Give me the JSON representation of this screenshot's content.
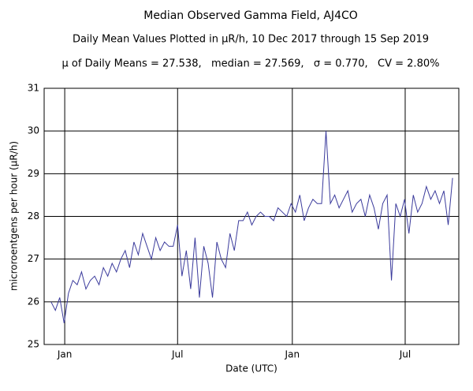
{
  "chart_data": {
    "type": "line",
    "title": "Median Observed Gamma Field, AJ4CO",
    "subtitle": "Daily Mean Values Plotted in μR/h, 10 Dec 2017 through 15 Sep 2019",
    "stats": "μ of Daily Means = 27.538,   median = 27.569,   σ = 0.770,   CV = 2.80%",
    "x_label": "Date (UTC)",
    "y_label": "microroentgens per hour (μR/h)",
    "color": "#3b3b9c",
    "grid": true,
    "xlim": [
      "2017-11-29",
      "2019-09-25"
    ],
    "xticks": [
      {
        "value": "2018-01-01",
        "label": "Jan"
      },
      {
        "value": "2018-07-01",
        "label": "Jul"
      },
      {
        "value": "2019-01-01",
        "label": "Jan"
      },
      {
        "value": "2019-07-01",
        "label": "Jul"
      }
    ],
    "ylim": [
      25,
      31
    ],
    "yticks": [
      25,
      26,
      27,
      28,
      29,
      30,
      31
    ],
    "x": [
      "2017-12-10",
      "2017-12-17",
      "2017-12-24",
      "2017-12-31",
      "2018-01-07",
      "2018-01-14",
      "2018-01-21",
      "2018-01-28",
      "2018-02-04",
      "2018-02-11",
      "2018-02-18",
      "2018-02-25",
      "2018-03-04",
      "2018-03-11",
      "2018-03-18",
      "2018-03-25",
      "2018-04-01",
      "2018-04-08",
      "2018-04-15",
      "2018-04-22",
      "2018-04-29",
      "2018-05-06",
      "2018-05-13",
      "2018-05-20",
      "2018-05-27",
      "2018-06-03",
      "2018-06-10",
      "2018-06-17",
      "2018-06-24",
      "2018-07-01",
      "2018-07-08",
      "2018-07-15",
      "2018-07-22",
      "2018-07-29",
      "2018-08-05",
      "2018-08-12",
      "2018-08-19",
      "2018-08-26",
      "2018-09-02",
      "2018-09-09",
      "2018-09-16",
      "2018-09-23",
      "2018-09-30",
      "2018-10-07",
      "2018-10-14",
      "2018-10-21",
      "2018-10-28",
      "2018-11-04",
      "2018-11-11",
      "2018-11-18",
      "2018-11-25",
      "2018-12-02",
      "2018-12-09",
      "2018-12-16",
      "2018-12-23",
      "2018-12-30",
      "2019-01-06",
      "2019-01-13",
      "2019-01-20",
      "2019-01-27",
      "2019-02-03",
      "2019-02-10",
      "2019-02-17",
      "2019-02-24",
      "2019-03-03",
      "2019-03-10",
      "2019-03-17",
      "2019-03-24",
      "2019-03-31",
      "2019-04-07",
      "2019-04-14",
      "2019-04-21",
      "2019-04-28",
      "2019-05-05",
      "2019-05-12",
      "2019-05-19",
      "2019-05-26",
      "2019-06-02",
      "2019-06-09",
      "2019-06-16",
      "2019-06-23",
      "2019-06-30",
      "2019-07-07",
      "2019-07-14",
      "2019-07-21",
      "2019-07-28",
      "2019-08-04",
      "2019-08-11",
      "2019-08-18",
      "2019-08-25",
      "2019-09-01",
      "2019-09-08",
      "2019-09-15"
    ],
    "values": [
      26.0,
      25.8,
      26.1,
      25.5,
      26.2,
      26.5,
      26.4,
      26.7,
      26.3,
      26.5,
      26.6,
      26.4,
      26.8,
      26.6,
      26.9,
      26.7,
      27.0,
      27.2,
      26.8,
      27.4,
      27.1,
      27.6,
      27.3,
      27.0,
      27.5,
      27.2,
      27.4,
      27.3,
      27.3,
      27.8,
      26.6,
      27.2,
      26.3,
      27.5,
      26.1,
      27.3,
      26.9,
      26.1,
      27.4,
      27.0,
      26.8,
      27.6,
      27.2,
      27.9,
      27.9,
      28.1,
      27.8,
      28.0,
      28.1,
      28.0,
      28.0,
      27.9,
      28.2,
      28.1,
      28.0,
      28.3,
      28.1,
      28.5,
      27.9,
      28.2,
      28.4,
      28.3,
      28.3,
      30.0,
      28.3,
      28.5,
      28.2,
      28.4,
      28.6,
      28.1,
      28.3,
      28.4,
      28.0,
      28.5,
      28.2,
      27.7,
      28.3,
      28.5,
      26.5,
      28.3,
      28.0,
      28.4,
      27.6,
      28.5,
      28.1,
      28.3,
      28.7,
      28.4,
      28.6,
      28.3,
      28.6,
      27.8,
      28.9
    ]
  }
}
